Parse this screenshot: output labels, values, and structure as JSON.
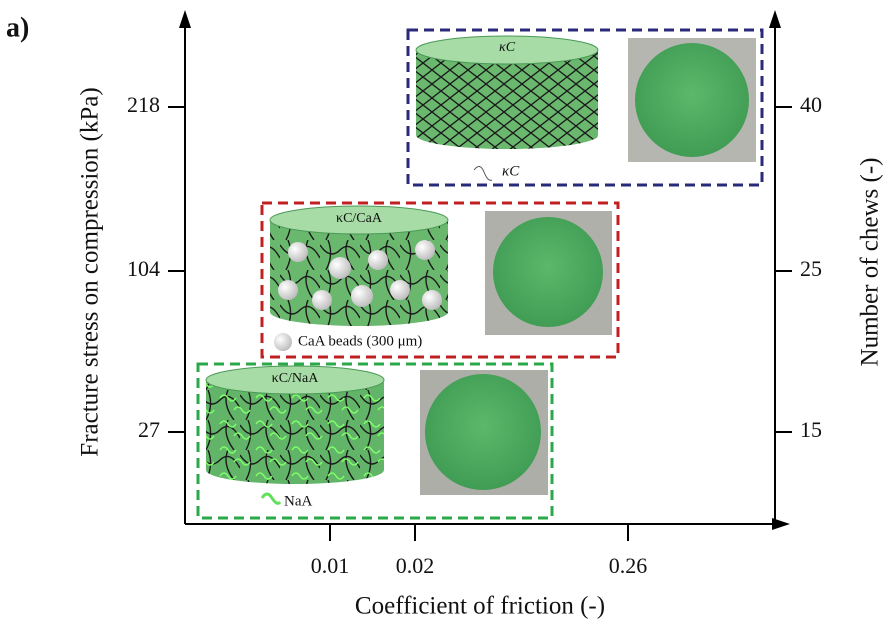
{
  "panel_label": "a)",
  "x_axis": {
    "label": "Coefficient of friction (-)",
    "ticks": [
      "0.01",
      "0.02",
      "0.26"
    ]
  },
  "y_axis": {
    "label": "Fracture stress on compression (kPa)",
    "ticks": [
      "218",
      "104",
      "27"
    ]
  },
  "y2_axis": {
    "label": "Number of chews (-)",
    "ticks": [
      "40",
      "25",
      "15"
    ]
  },
  "panels": [
    {
      "label": "κC",
      "legend": "κC"
    },
    {
      "label": "κC/CaA",
      "legend": "CaA beads (300 μm)"
    },
    {
      "label": "κC/NaA",
      "legend": "NaA"
    }
  ]
}
